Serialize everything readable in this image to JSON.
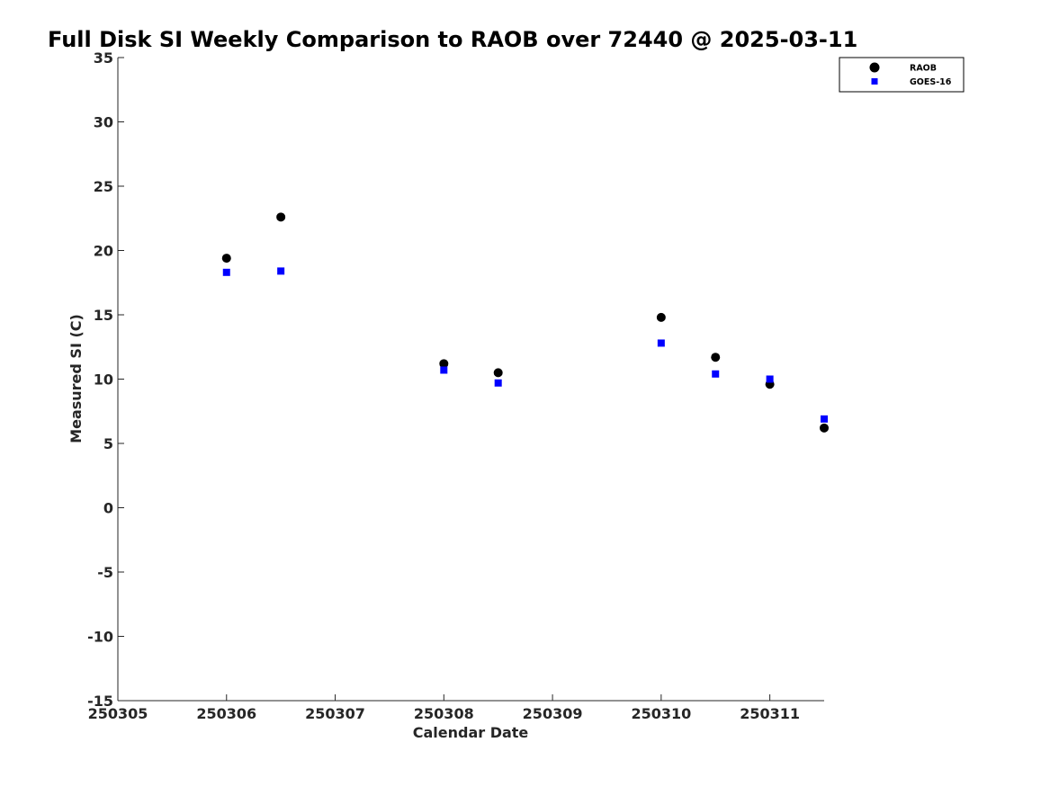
{
  "chart_data": {
    "type": "scatter",
    "title": "Full Disk SI Weekly Comparison to RAOB over 72440 @ 2025-03-11",
    "xlabel": "Calendar Date",
    "ylabel": "Measured SI (C)",
    "xlim": [
      250305,
      250311.5
    ],
    "ylim": [
      -15,
      35
    ],
    "xticks": [
      "250305",
      "250306",
      "250307",
      "250308",
      "250309",
      "250310",
      "250311"
    ],
    "yticks": [
      "35",
      "30",
      "25",
      "20",
      "15",
      "10",
      "5",
      "0",
      "-5",
      "-10",
      "-15"
    ],
    "grid": false,
    "legend_position": "top-right",
    "series": [
      {
        "name": "RAOB",
        "marker": "circle",
        "color": "#000000",
        "points": [
          {
            "x": 250306.0,
            "y": 19.4
          },
          {
            "x": 250306.5,
            "y": 22.6
          },
          {
            "x": 250308.0,
            "y": 11.2
          },
          {
            "x": 250308.5,
            "y": 10.5
          },
          {
            "x": 250310.0,
            "y": 14.8
          },
          {
            "x": 250310.5,
            "y": 11.7
          },
          {
            "x": 250311.0,
            "y": 9.6
          },
          {
            "x": 250311.5,
            "y": 6.2
          }
        ]
      },
      {
        "name": "GOES-16",
        "marker": "square",
        "color": "#0000ff",
        "points": [
          {
            "x": 250306.0,
            "y": 18.3
          },
          {
            "x": 250306.5,
            "y": 18.4
          },
          {
            "x": 250308.0,
            "y": 10.7
          },
          {
            "x": 250308.5,
            "y": 9.7
          },
          {
            "x": 250310.0,
            "y": 12.8
          },
          {
            "x": 250310.5,
            "y": 10.4
          },
          {
            "x": 250311.0,
            "y": 10.0
          },
          {
            "x": 250311.5,
            "y": 6.9
          }
        ]
      }
    ]
  }
}
